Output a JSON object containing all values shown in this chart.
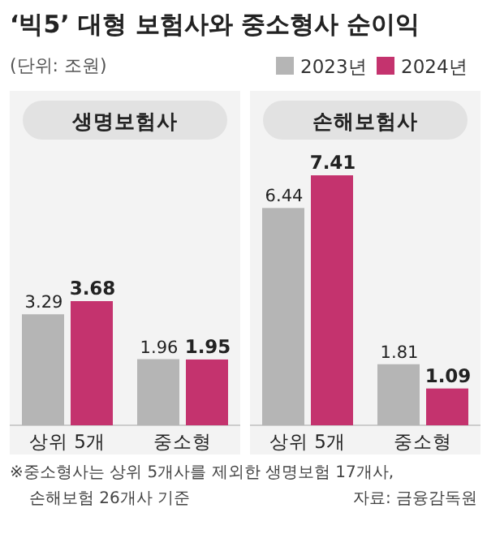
{
  "chart_data": [
    {
      "type": "other",
      "title": "‘빅5’ 대형 보험사와 중소형사 순이익",
      "subtitle": "(단위: 조원)",
      "annotations": [
        "※중소형사는 상위 5개사를 제외한 생명보험 17개사,",
        "손해보험 26개사 기준",
        "자료: 금융감독원"
      ]
    },
    {
      "type": "bar",
      "title": "생명보험사",
      "categories": [
        "상위 5개",
        "중소형"
      ],
      "series": [
        {
          "name": "2023년",
          "color": "#b5b5b5",
          "values": [
            3.29,
            1.96
          ]
        },
        {
          "name": "2024년",
          "color": "#c4336e",
          "values": [
            3.68,
            1.95
          ]
        }
      ],
      "data_labels": true,
      "legend": "top right"
    },
    {
      "type": "bar",
      "title": "손해보험사",
      "categories": [
        "상위 5개",
        "중소형"
      ],
      "series": [
        {
          "color": "#b5b5b5",
          "values": [
            6.44,
            1.81
          ]
        },
        {
          "color": "#c4336e",
          "values": [
            7.41,
            1.09
          ]
        }
      ],
      "data_labels": true
    }
  ]
}
